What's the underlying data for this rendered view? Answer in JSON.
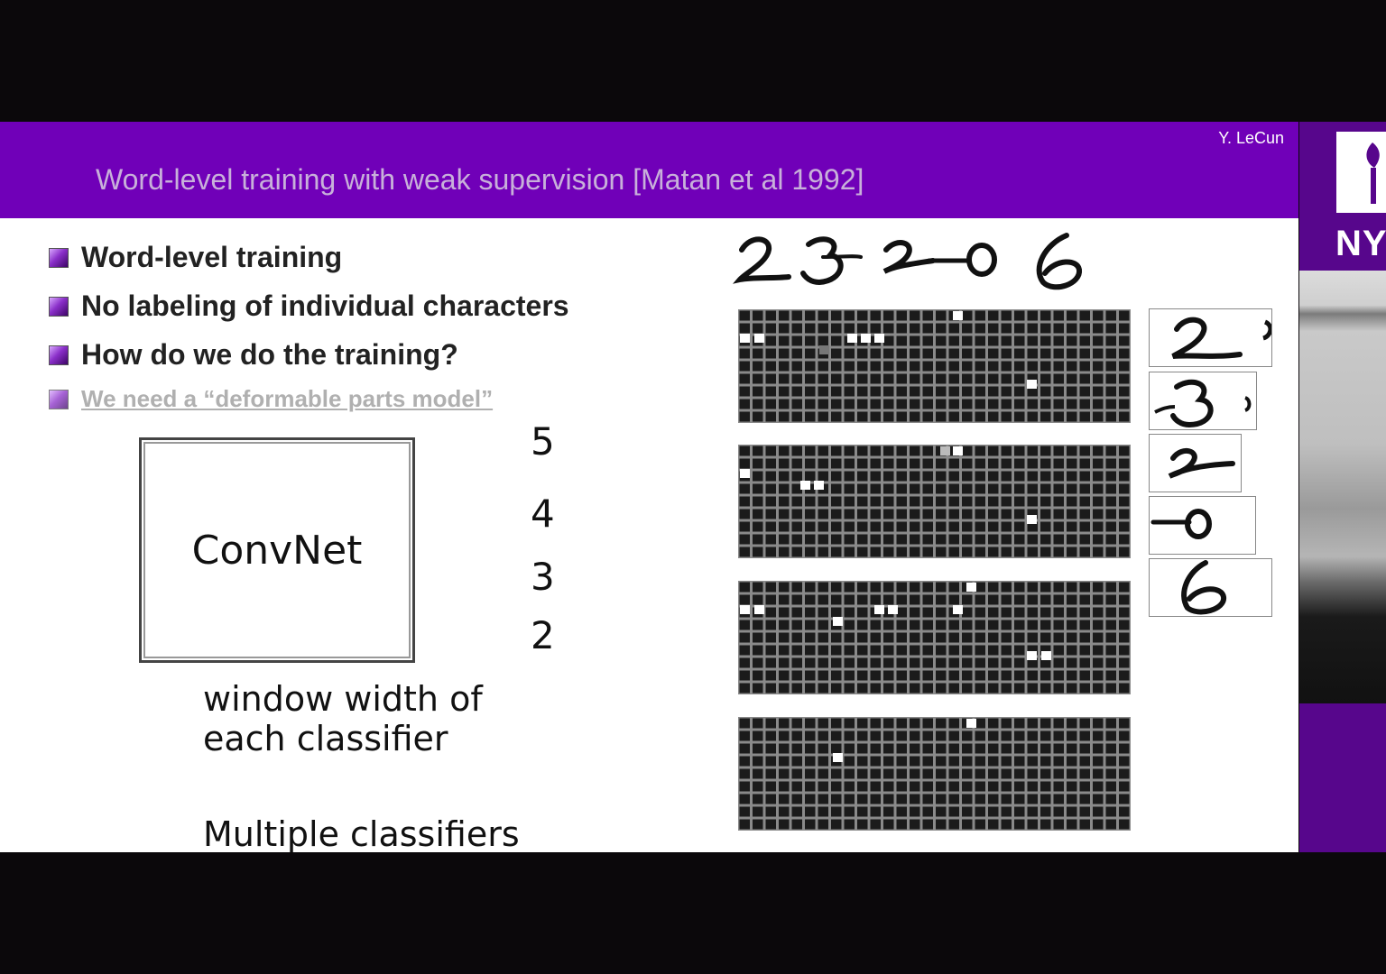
{
  "slide": {
    "author": "Y. LeCun",
    "title": "Word-level training with weak supervision [Matan et al 1992]",
    "bullets": [
      "Word-level training",
      "No labeling of individual characters",
      "How do we do the training?",
      "We need a “deformable parts model”"
    ],
    "convnet_label": "ConvNet",
    "window_numbers": [
      "5",
      "4",
      "3",
      "2"
    ],
    "caption_window": "window width of each classifier",
    "caption_multiple": "Multiple classifiers",
    "handwritten_digits": "23206",
    "character_crops": [
      "2",
      "3",
      "2",
      "0",
      "6"
    ]
  },
  "sidebar": {
    "logo_text": "NY"
  },
  "colors": {
    "header_bg": "#7000b8",
    "title_text": "#c8b0da",
    "nyu_purple": "#57068c"
  }
}
